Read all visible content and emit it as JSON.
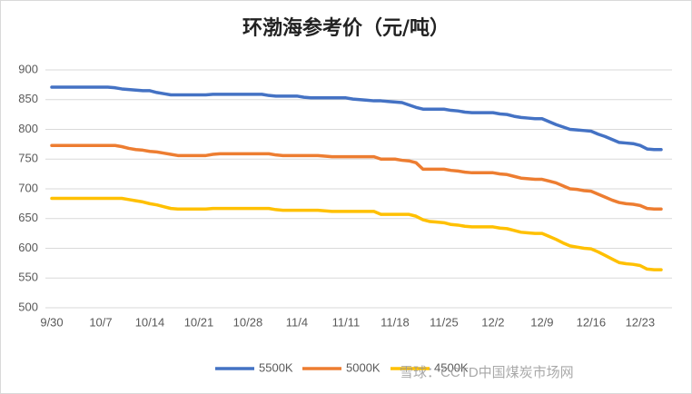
{
  "chart_data": {
    "type": "line",
    "title": "环渤海参考价（元/吨）",
    "watermark": "雪球：CCTD中国煤炭市场网",
    "categories": [
      "9/30",
      null,
      null,
      null,
      null,
      null,
      null,
      "10/7",
      null,
      null,
      null,
      null,
      null,
      null,
      "10/14",
      null,
      null,
      null,
      null,
      null,
      null,
      "10/21",
      null,
      null,
      null,
      null,
      null,
      null,
      "10/28",
      null,
      null,
      null,
      null,
      null,
      null,
      "11/4",
      null,
      null,
      null,
      null,
      null,
      null,
      "11/11",
      null,
      null,
      null,
      null,
      null,
      null,
      "11/18",
      null,
      null,
      null,
      null,
      null,
      null,
      "11/25",
      null,
      null,
      null,
      null,
      null,
      null,
      "12/2",
      null,
      null,
      null,
      null,
      null,
      null,
      "12/9",
      null,
      null,
      null,
      null,
      null,
      null,
      "12/16",
      null,
      null,
      null,
      null,
      null,
      null,
      "12/23",
      null,
      null,
      null
    ],
    "series": [
      {
        "name": "5500K",
        "color": "#4472c4",
        "values": [
          871,
          871,
          871,
          871,
          871,
          871,
          871,
          871,
          871,
          870,
          868,
          867,
          866,
          865,
          865,
          862,
          860,
          858,
          858,
          858,
          858,
          858,
          858,
          859,
          859,
          859,
          859,
          859,
          859,
          859,
          859,
          857,
          856,
          856,
          856,
          856,
          854,
          853,
          853,
          853,
          853,
          853,
          853,
          851,
          850,
          849,
          848,
          848,
          847,
          846,
          845,
          841,
          837,
          834,
          834,
          834,
          834,
          832,
          831,
          829,
          828,
          828,
          828,
          828,
          826,
          825,
          822,
          820,
          819,
          818,
          818,
          813,
          808,
          804,
          800,
          799,
          798,
          797,
          792,
          788,
          783,
          778,
          777,
          776,
          773,
          767,
          766,
          766
        ]
      },
      {
        "name": "5000K",
        "color": "#ed7d31",
        "values": [
          773,
          773,
          773,
          773,
          773,
          773,
          773,
          773,
          773,
          773,
          771,
          768,
          766,
          765,
          763,
          762,
          760,
          758,
          756,
          756,
          756,
          756,
          756,
          758,
          759,
          759,
          759,
          759,
          759,
          759,
          759,
          759,
          757,
          756,
          756,
          756,
          756,
          756,
          756,
          755,
          754,
          754,
          754,
          754,
          754,
          754,
          754,
          750,
          750,
          750,
          748,
          747,
          744,
          733,
          733,
          733,
          733,
          731,
          730,
          728,
          727,
          727,
          727,
          727,
          725,
          724,
          721,
          718,
          717,
          716,
          716,
          713,
          710,
          705,
          700,
          699,
          697,
          696,
          691,
          686,
          681,
          677,
          675,
          674,
          672,
          667,
          666,
          666
        ]
      },
      {
        "name": "4500K",
        "color": "#ffc000",
        "values": [
          684,
          684,
          684,
          684,
          684,
          684,
          684,
          684,
          684,
          684,
          684,
          682,
          680,
          678,
          675,
          673,
          670,
          667,
          666,
          666,
          666,
          666,
          666,
          667,
          667,
          667,
          667,
          667,
          667,
          667,
          667,
          667,
          665,
          664,
          664,
          664,
          664,
          664,
          664,
          663,
          662,
          662,
          662,
          662,
          662,
          662,
          662,
          657,
          657,
          657,
          657,
          657,
          654,
          648,
          645,
          644,
          643,
          640,
          639,
          637,
          636,
          636,
          636,
          636,
          634,
          633,
          630,
          627,
          626,
          625,
          625,
          620,
          615,
          609,
          604,
          602,
          600,
          599,
          594,
          588,
          582,
          576,
          574,
          573,
          571,
          565,
          564,
          564
        ]
      }
    ],
    "ylim": [
      500,
      900
    ],
    "yticks": [
      500,
      550,
      600,
      650,
      700,
      750,
      800,
      850,
      900
    ],
    "grid": true,
    "legend": "bottom"
  }
}
